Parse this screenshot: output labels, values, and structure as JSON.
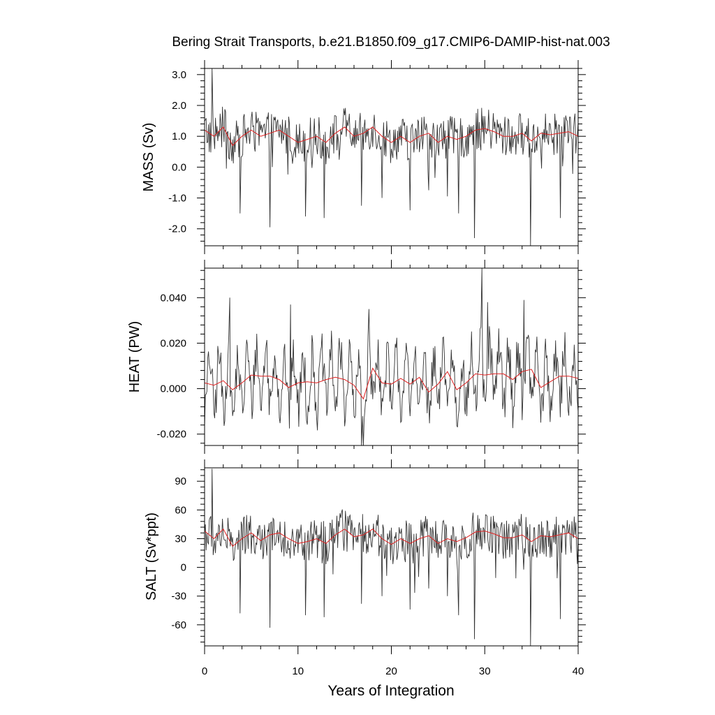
{
  "chart_data": {
    "type": "line",
    "title": "Bering Strait Transports, b.e21.B1850.f09_g17.CMIP6-DAMIP-hist-nat.003",
    "xlabel": "Years of Integration",
    "xlim": [
      0,
      40
    ],
    "x_ticks": [
      0,
      10,
      20,
      30,
      40
    ],
    "x_tick_labels": [
      "0",
      "10",
      "20",
      "30",
      "40"
    ],
    "colors": {
      "monthly": "#333333",
      "annual": "#e02020",
      "frame": "#000000"
    },
    "panels": [
      {
        "ylabel": "MASS (Sv)",
        "ylim": [
          -2.55,
          3.2
        ],
        "y_ticks": [
          -2.0,
          -1.0,
          0.0,
          1.0,
          2.0,
          3.0
        ],
        "y_tick_labels": [
          "-2.0",
          "-1.0",
          "0.0",
          "1.0",
          "2.0",
          "3.0"
        ],
        "series": [
          {
            "x": [
              0,
              1,
              2,
              3,
              4,
              5,
              6,
              7,
              8,
              9,
              10,
              11,
              12,
              13,
              14,
              15,
              16,
              17,
              18,
              19,
              20,
              21,
              22,
              23,
              24,
              25,
              26,
              27,
              28,
              29,
              30,
              31,
              32,
              33,
              34,
              35,
              36,
              37,
              38,
              39,
              40
            ],
            "values": [
              1.2,
              1.0,
              1.3,
              0.7,
              1.0,
              1.2,
              1.0,
              1.1,
              1.2,
              1.0,
              0.8,
              0.9,
              1.0,
              0.8,
              1.1,
              1.3,
              1.0,
              1.1,
              1.3,
              1.0,
              0.8,
              1.0,
              0.8,
              1.0,
              1.1,
              0.8,
              1.0,
              0.9,
              1.0,
              1.2,
              1.25,
              1.15,
              1.0,
              1.0,
              1.1,
              0.85,
              1.1,
              1.05,
              1.1,
              1.15,
              1.0
            ]
          }
        ],
        "monthly_extremes": [
          [
            0.8,
            3.2
          ],
          [
            3.8,
            -1.5
          ],
          [
            7.0,
            -1.95
          ],
          [
            10.8,
            -1.6
          ],
          [
            12.8,
            -1.65
          ],
          [
            16.8,
            -1.25
          ],
          [
            19.0,
            -1.0
          ],
          [
            22.0,
            -1.4
          ],
          [
            24.0,
            -0.75
          ],
          [
            26.0,
            -0.95
          ],
          [
            27.2,
            -1.5
          ],
          [
            28.9,
            -2.3
          ],
          [
            34.9,
            -2.55
          ],
          [
            38.1,
            -1.65
          ]
        ]
      },
      {
        "ylabel": "HEAT (PW)",
        "ylim": [
          -0.025,
          0.053
        ],
        "y_ticks": [
          -0.02,
          0.0,
          0.02,
          0.04
        ],
        "y_tick_labels": [
          "-0.020",
          "0.000",
          "0.020",
          "0.040"
        ],
        "series": [
          {
            "x": [
              0,
              1,
              2,
              3,
              4,
              5,
              6,
              7,
              8,
              9,
              10,
              11,
              12,
              13,
              14,
              15,
              16,
              17,
              18,
              19,
              20,
              21,
              22,
              23,
              24,
              25,
              26,
              27,
              28,
              29,
              30,
              31,
              32,
              33,
              34,
              35,
              36,
              37,
              38,
              39,
              40
            ],
            "values": [
              0.0025,
              0.0015,
              0.0035,
              -0.0005,
              0.0025,
              0.006,
              0.0055,
              0.0055,
              0.004,
              0.0005,
              0.0025,
              0.003,
              0.0025,
              0.004,
              0.005,
              0.004,
              0.0015,
              -0.0045,
              0.009,
              0.0025,
              0.002,
              0.0045,
              0.002,
              0.005,
              -0.0015,
              0.002,
              0.0075,
              -0.0005,
              0.0025,
              0.0065,
              0.006,
              0.0065,
              0.0065,
              0.004,
              0.0075,
              0.0085,
              0.0005,
              0.003,
              0.0055,
              0.0055,
              0.0045
            ]
          }
        ],
        "monthly_extremes": [
          [
            2.7,
            0.04
          ],
          [
            9.2,
            0.037
          ],
          [
            16.8,
            -0.025
          ],
          [
            17.6,
            0.035
          ],
          [
            29.7,
            0.053
          ],
          [
            30.3,
            0.038
          ],
          [
            34.2,
            0.039
          ]
        ]
      },
      {
        "ylabel": "SALT (Sv*ppt)",
        "ylim": [
          -82,
          104
        ],
        "y_ticks": [
          -60,
          -30,
          0,
          30,
          60,
          90
        ],
        "y_tick_labels": [
          "-60",
          "-30",
          "0",
          "30",
          "60",
          "90"
        ],
        "series": [
          {
            "x": [
              0,
              1,
              2,
              3,
              4,
              5,
              6,
              7,
              8,
              9,
              10,
              11,
              12,
              13,
              14,
              15,
              16,
              17,
              18,
              19,
              20,
              21,
              22,
              23,
              24,
              25,
              26,
              27,
              28,
              29,
              30,
              31,
              32,
              33,
              34,
              35,
              36,
              37,
              38,
              39,
              40
            ],
            "values": [
              38,
              30,
              40,
              22,
              30,
              36,
              28,
              34,
              36,
              30,
              25,
              27,
              30,
              25,
              34,
              40,
              32,
              34,
              40,
              30,
              24,
              30,
              25,
              30,
              33,
              25,
              30,
              27,
              31,
              37,
              38,
              35,
              31,
              31,
              34,
              27,
              33,
              32,
              34,
              36,
              30
            ]
          }
        ],
        "monthly_extremes": [
          [
            0.8,
            103
          ],
          [
            3.8,
            -48
          ],
          [
            7.0,
            -63
          ],
          [
            10.8,
            -50
          ],
          [
            12.8,
            -52
          ],
          [
            16.8,
            -38
          ],
          [
            19.0,
            -30
          ],
          [
            22.0,
            -44
          ],
          [
            24.0,
            -22
          ],
          [
            26.0,
            -30
          ],
          [
            27.2,
            -50
          ],
          [
            28.9,
            -75
          ],
          [
            34.9,
            -82
          ],
          [
            38.1,
            -54
          ]
        ]
      }
    ]
  }
}
